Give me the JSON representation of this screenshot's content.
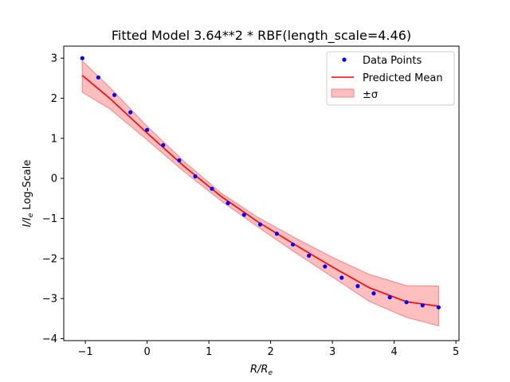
{
  "chart_data": {
    "type": "line",
    "title": "Fitted Model 3.64**2 * RBF(length_scale=4.46)",
    "xlabel": "R/R",
    "xlabel_sub": "e",
    "ylabel_prefix": "I/I",
    "ylabel_sub": "e",
    "ylabel_suffix": " Log-Scale",
    "xlim": [
      -1.35,
      5.05
    ],
    "ylim": [
      -4.05,
      3.3
    ],
    "xticks": [
      -1,
      0,
      1,
      2,
      3,
      4,
      5
    ],
    "xtick_labels": [
      "−1",
      "0",
      "1",
      "2",
      "3",
      "4",
      "5"
    ],
    "yticks": [
      -4,
      -3,
      -2,
      -1,
      0,
      1,
      2,
      3
    ],
    "ytick_labels": [
      "−4",
      "−3",
      "−2",
      "−1",
      "0",
      "1",
      "2",
      "3"
    ],
    "grid": false,
    "legend_position": "top-right",
    "legend": {
      "points": "Data Points",
      "mean": "Predicted Mean",
      "band": "±σ"
    },
    "colors": {
      "points": "#0000ff",
      "mean": "#ff0000",
      "band_fill": "#ffbfbf",
      "band_edge": "#ff8080"
    },
    "series": [
      {
        "name": "Data Points",
        "kind": "scatter",
        "x": [
          -1.05,
          -0.79,
          -0.53,
          -0.27,
          0.0,
          0.26,
          0.52,
          0.78,
          1.05,
          1.31,
          1.57,
          1.83,
          2.1,
          2.36,
          2.62,
          2.88,
          3.15,
          3.41,
          3.67,
          3.93,
          4.2,
          4.46,
          4.72
        ],
        "y": [
          3.0,
          2.52,
          2.08,
          1.65,
          1.21,
          0.83,
          0.45,
          0.05,
          -0.26,
          -0.62,
          -0.91,
          -1.15,
          -1.38,
          -1.65,
          -1.93,
          -2.2,
          -2.48,
          -2.69,
          -2.87,
          -2.97,
          -3.09,
          -3.17,
          -3.22
        ]
      },
      {
        "name": "Predicted Mean",
        "kind": "line",
        "x": [
          -1.05,
          -0.6,
          0.0,
          0.6,
          1.2,
          1.8,
          2.4,
          3.0,
          3.6,
          4.2,
          4.72
        ],
        "y": [
          2.57,
          1.99,
          1.13,
          0.3,
          -0.45,
          -1.09,
          -1.66,
          -2.21,
          -2.73,
          -3.08,
          -3.19
        ]
      },
      {
        "name": "±σ",
        "kind": "band",
        "x": [
          -1.05,
          -0.6,
          0.0,
          0.6,
          1.2,
          1.8,
          2.4,
          3.0,
          3.6,
          4.2,
          4.72
        ],
        "upper": [
          2.93,
          2.26,
          1.3,
          0.42,
          -0.37,
          -0.98,
          -1.49,
          -1.97,
          -2.4,
          -2.68,
          -2.69
        ],
        "lower": [
          2.15,
          1.73,
          0.96,
          0.17,
          -0.56,
          -1.22,
          -1.85,
          -2.46,
          -3.07,
          -3.47,
          -3.68
        ]
      }
    ]
  }
}
